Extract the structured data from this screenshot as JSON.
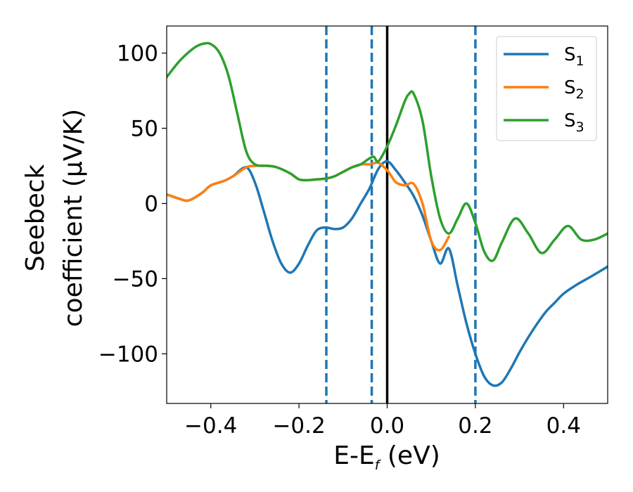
{
  "chart_data": {
    "type": "line",
    "xlabel_main": "E-E",
    "xlabel_sub": "f",
    "xlabel_unit": " (eV)",
    "ylabel_line1": "Seebeck",
    "ylabel_line2": "coefficient  (μV/K)",
    "xlim": [
      -0.5,
      0.5
    ],
    "ylim": [
      -133,
      118
    ],
    "x_ticks": [
      -0.4,
      -0.2,
      0.0,
      0.2,
      0.4
    ],
    "x_tick_labels": [
      "−0.4",
      "−0.2",
      "0.0",
      "0.2",
      "0.4"
    ],
    "y_ticks": [
      100,
      50,
      0,
      -50,
      -100
    ],
    "y_tick_labels": [
      "100",
      "50",
      "0",
      "−50",
      "−100"
    ],
    "grid": false,
    "legend_position": "top-right",
    "vertical_lines": [
      {
        "x": -0.138,
        "style": "dashed",
        "color": "#1f77b4"
      },
      {
        "x": -0.035,
        "style": "dashed",
        "color": "#1f77b4"
      },
      {
        "x": 0.0,
        "style": "solid",
        "color": "#000000"
      },
      {
        "x": 0.2,
        "style": "dashed",
        "color": "#1f77b4"
      }
    ],
    "series": [
      {
        "name": "S",
        "name_sub": "1",
        "color": "#1f77b4",
        "x": [
          -0.5,
          -0.47,
          -0.45,
          -0.42,
          -0.4,
          -0.37,
          -0.35,
          -0.32,
          -0.3,
          -0.28,
          -0.26,
          -0.24,
          -0.22,
          -0.2,
          -0.18,
          -0.16,
          -0.14,
          -0.12,
          -0.1,
          -0.08,
          -0.06,
          -0.04,
          -0.02,
          0.0,
          0.02,
          0.04,
          0.06,
          0.08,
          0.1,
          0.12,
          0.14,
          0.16,
          0.18,
          0.2,
          0.22,
          0.24,
          0.26,
          0.28,
          0.3,
          0.32,
          0.34,
          0.36,
          0.38,
          0.4,
          0.43,
          0.46,
          0.5
        ],
        "y": [
          6,
          3,
          2,
          7,
          12,
          15,
          18,
          24,
          14,
          -5,
          -25,
          -40,
          -46,
          -40,
          -28,
          -18,
          -16,
          -17,
          -16,
          -10,
          0,
          10,
          23,
          28,
          22,
          14,
          5,
          -8,
          -25,
          -40,
          -30,
          -55,
          -80,
          -100,
          -115,
          -121,
          -119,
          -110,
          -99,
          -89,
          -80,
          -72,
          -66,
          -60,
          -54,
          -49,
          -42
        ]
      },
      {
        "name": "S",
        "name_sub": "2",
        "color": "#ff7f0e",
        "x": [
          -0.5,
          -0.47,
          -0.45,
          -0.42,
          -0.4,
          -0.37,
          -0.35,
          -0.32,
          -0.3,
          -0.27,
          -0.25,
          -0.22,
          -0.2,
          -0.18,
          -0.16,
          -0.14,
          -0.12,
          -0.1,
          -0.08,
          -0.06,
          -0.04,
          -0.02,
          0.0,
          0.01,
          0.02,
          0.04,
          0.06,
          0.08,
          0.1,
          0.12,
          0.14
        ],
        "y": [
          6,
          3,
          2,
          7,
          12,
          15,
          18,
          24,
          25,
          25,
          24,
          20,
          16,
          15.5,
          16,
          16.5,
          18,
          21,
          24,
          26,
          26,
          27,
          22,
          18,
          14,
          12,
          13,
          0,
          -25,
          -31,
          -22
        ]
      },
      {
        "name": "S",
        "name_sub": "3",
        "color": "#2ca02c",
        "x": [
          -0.5,
          -0.47,
          -0.44,
          -0.42,
          -0.4,
          -0.38,
          -0.36,
          -0.34,
          -0.32,
          -0.3,
          -0.27,
          -0.25,
          -0.22,
          -0.2,
          -0.18,
          -0.16,
          -0.14,
          -0.12,
          -0.1,
          -0.08,
          -0.06,
          -0.04,
          -0.03,
          -0.02,
          0.0,
          0.02,
          0.04,
          0.05,
          0.06,
          0.08,
          0.1,
          0.12,
          0.14,
          0.16,
          0.18,
          0.2,
          0.22,
          0.24,
          0.26,
          0.29,
          0.32,
          0.35,
          0.38,
          0.41,
          0.44,
          0.47,
          0.5
        ],
        "y": [
          84,
          95,
          103,
          106,
          106,
          100,
          85,
          60,
          35,
          26,
          25,
          24,
          20,
          16,
          15.5,
          16,
          16.5,
          18,
          21,
          24,
          26,
          30,
          31,
          28,
          38,
          52,
          68,
          73,
          73,
          55,
          18,
          -10,
          -20,
          -10,
          0,
          -13,
          -32,
          -38,
          -26,
          -10,
          -20,
          -33,
          -24,
          -15,
          -24,
          -24,
          -20
        ]
      }
    ]
  }
}
